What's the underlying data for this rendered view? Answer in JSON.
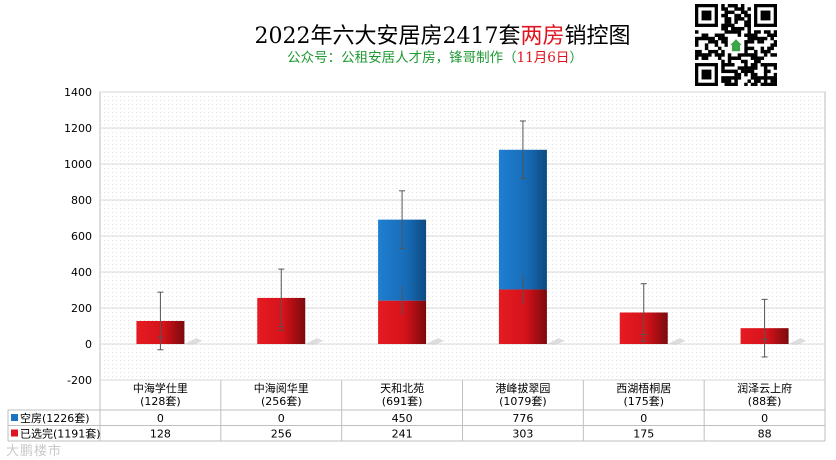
{
  "header": {
    "title_main": "2022年六大安居房2417套",
    "title_highlight": "两房",
    "title_tail": "销控图",
    "subtitle_main": "公众号：公租安居人才房，锋哥制作（",
    "subtitle_date": "11月6日",
    "subtitle_tail": "）"
  },
  "qr_code": {
    "label": "qr-code",
    "icon": "house-icon"
  },
  "watermark": "大鹏楼市",
  "colors": {
    "vacant": "#1b73c2",
    "selected": "#e0141e",
    "grid": "#d9d9d9",
    "axis_text": "#000000"
  },
  "chart_data": {
    "type": "bar",
    "stacked": true,
    "title": "2022年六大安居房2417套两房销控图",
    "categories": [
      "中海学仕里\n(128套)",
      "中海阅华里\n(256套)",
      "天和北苑\n(691套)",
      "港峰拔翠园\n(1079套)",
      "西湖梧桐居\n(175套)",
      "润泽云上府\n(88套)"
    ],
    "series": [
      {
        "name": "已选完(1191套)",
        "color": "#e0141e",
        "values": [
          128,
          256,
          241,
          303,
          175,
          88
        ]
      },
      {
        "name": "空房(1226套)",
        "color": "#1b73c2",
        "values": [
          0,
          0,
          450,
          776,
          0,
          0
        ]
      }
    ],
    "table_rows": [
      {
        "name": "空房(1226套)",
        "values": [
          "0",
          "0",
          "450",
          "776",
          "0",
          "0"
        ]
      },
      {
        "name": "已选完(1191套)",
        "values": [
          "128",
          "256",
          "241",
          "303",
          "175",
          "88"
        ]
      }
    ],
    "yticks": [
      "-200",
      "0",
      "200",
      "400",
      "600",
      "800",
      "1000",
      "1200",
      "1400"
    ],
    "ylim": [
      -200,
      1400
    ],
    "error_bar": 160,
    "grid": true,
    "legend": "data-table"
  }
}
